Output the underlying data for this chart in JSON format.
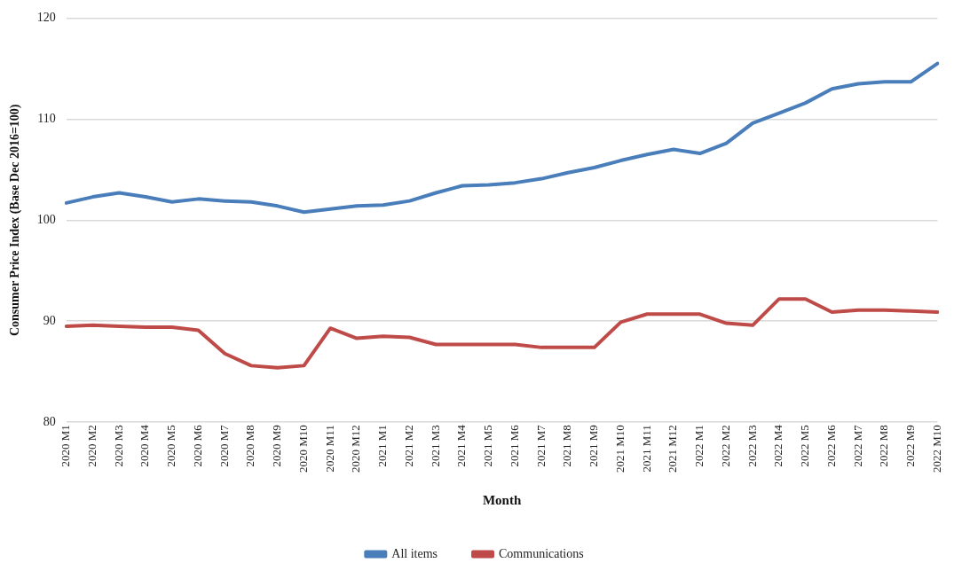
{
  "chart_data": {
    "type": "line",
    "xlabel": "Month",
    "ylabel": "Consumer Price Index (Base Dec 2016=100)",
    "categories": [
      "2020 M1",
      "2020 M2",
      "2020 M3",
      "2020 M4",
      "2020 M5",
      "2020 M6",
      "2020 M7",
      "2020 M8",
      "2020 M9",
      "2020 M10",
      "2020 M11",
      "2020 M12",
      "2021 M1",
      "2021 M2",
      "2021 M3",
      "2021 M4",
      "2021 M5",
      "2021 M6",
      "2021 M7",
      "2021 M8",
      "2021 M9",
      "2021 M10",
      "2021 M11",
      "2021 M12",
      "2022 M1",
      "2022 M2",
      "2022 M3",
      "2022 M4",
      "2022 M5",
      "2022 M6",
      "2022 M7",
      "2022 M8",
      "2022 M9",
      "2022 M10"
    ],
    "series": [
      {
        "name": "All items",
        "color": "#4a7ebb",
        "values": [
          101.7,
          102.3,
          102.7,
          102.3,
          101.8,
          102.1,
          101.9,
          101.8,
          101.4,
          100.8,
          101.1,
          101.4,
          101.5,
          101.9,
          102.7,
          103.4,
          103.5,
          103.7,
          104.1,
          104.7,
          105.2,
          105.9,
          106.5,
          107.0,
          106.6,
          107.6,
          109.6,
          110.6,
          111.6,
          113.0,
          113.5,
          113.7,
          113.7,
          115.5
        ]
      },
      {
        "name": "Communications",
        "color": "#be4b48",
        "values": [
          89.5,
          89.6,
          89.5,
          89.4,
          89.4,
          89.1,
          86.8,
          85.6,
          85.4,
          85.6,
          89.3,
          88.3,
          88.5,
          88.4,
          87.7,
          87.7,
          87.7,
          87.7,
          87.4,
          87.4,
          87.4,
          89.9,
          90.7,
          90.7,
          90.7,
          89.8,
          89.6,
          92.2,
          92.2,
          90.9,
          91.1,
          91.1,
          91.0,
          90.9
        ]
      }
    ],
    "ylim": [
      80,
      120
    ],
    "yticks": [
      80,
      90,
      100,
      110,
      120
    ],
    "grid": "y",
    "legend": "bottom",
    "marker": "none",
    "line_style": "solid"
  }
}
